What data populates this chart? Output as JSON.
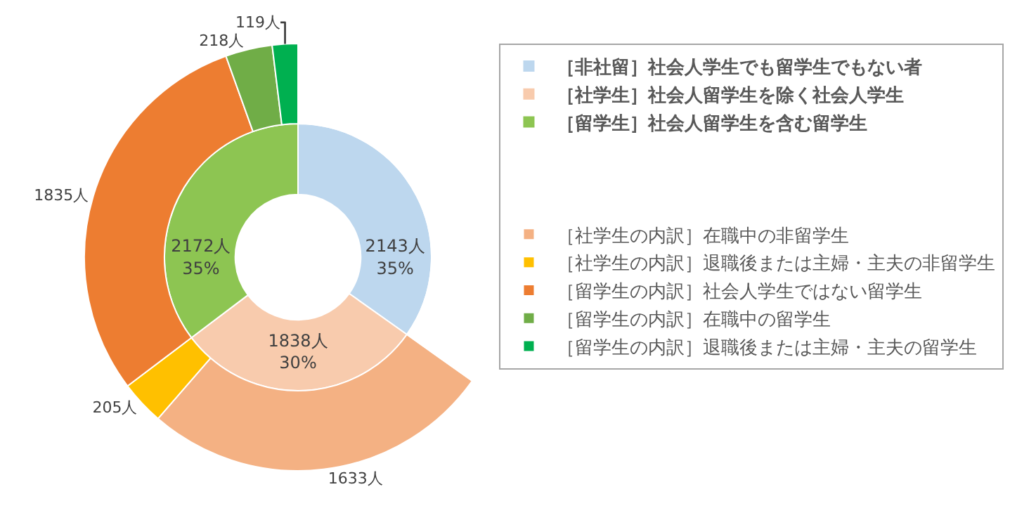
{
  "chart_data": [
    {
      "type": "donut",
      "categories": [
        "［非社留］社会人学生でも留学生でもない者",
        "［社学生］社会人留学生を除く社会人学生",
        "［留学生］社会人留学生を含む留学生"
      ],
      "values": [
        2143,
        1838,
        2172
      ],
      "colors": [
        "#bdd7ee",
        "#f8cbad",
        "#8dc552"
      ],
      "value_labels": [
        "2143人\n35%",
        "1838人\n30%",
        "2172人\n35%"
      ],
      "legend": "right"
    },
    {
      "type": "donut",
      "categories": [
        "［社学生の内訳］在職中の非留学生",
        "［社学生の内訳］退職後または主婦・主夫の非留学生",
        "［留学生の内訳］社会人学生ではない留学生",
        "［留学生の内訳］在職中の留学生",
        "［留学生の内訳］退職後または主婦・主夫の留学生"
      ],
      "values": [
        1633,
        205,
        1835,
        218,
        119
      ],
      "colors": [
        "#f4b183",
        "#ffc000",
        "#ed7d31",
        "#70ad47",
        "#00b050"
      ],
      "value_labels": [
        "1633人",
        "205人",
        "1835人",
        "218人",
        "119人"
      ],
      "legend": "right"
    }
  ]
}
